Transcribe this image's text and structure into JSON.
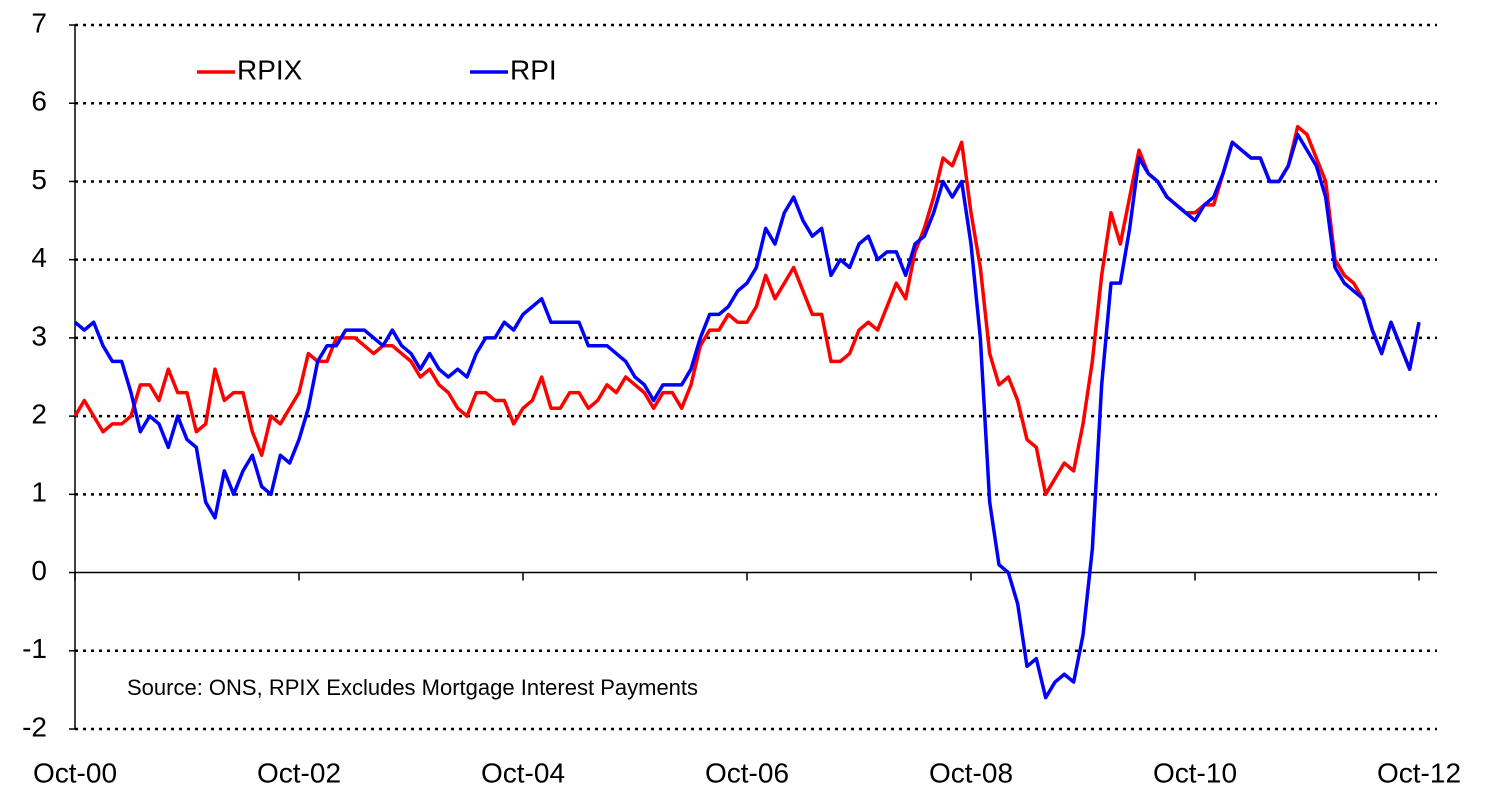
{
  "chart_data": {
    "type": "line",
    "annotation": "Source: ONS, RPIX Excludes Mortgage Interest Payments",
    "categories": [
      "Oct-00",
      null,
      null,
      null,
      null,
      null,
      null,
      null,
      null,
      null,
      null,
      null,
      null,
      null,
      null,
      null,
      null,
      null,
      null,
      null,
      null,
      null,
      null,
      null,
      "Oct-02",
      null,
      null,
      null,
      null,
      null,
      null,
      null,
      null,
      null,
      null,
      null,
      null,
      null,
      null,
      null,
      null,
      null,
      null,
      null,
      null,
      null,
      null,
      null,
      "Oct-04",
      null,
      null,
      null,
      null,
      null,
      null,
      null,
      null,
      null,
      null,
      null,
      null,
      null,
      null,
      null,
      null,
      null,
      null,
      null,
      null,
      null,
      null,
      null,
      "Oct-06",
      null,
      null,
      null,
      null,
      null,
      null,
      null,
      null,
      null,
      null,
      null,
      null,
      null,
      null,
      null,
      null,
      null,
      null,
      null,
      null,
      null,
      null,
      null,
      "Oct-08",
      null,
      null,
      null,
      null,
      null,
      null,
      null,
      null,
      null,
      null,
      null,
      null,
      null,
      null,
      null,
      null,
      null,
      null,
      null,
      null,
      null,
      null,
      null,
      "Oct-10",
      null,
      null,
      null,
      null,
      null,
      null,
      null,
      null,
      null,
      null,
      null,
      null,
      null,
      null,
      null,
      null,
      null,
      null,
      null,
      null,
      null,
      null,
      null,
      "Oct-12"
    ],
    "series": [
      {
        "name": "RPIX",
        "color": "#ff0000",
        "values": [
          2.0,
          2.2,
          2.0,
          1.8,
          1.9,
          1.9,
          2.0,
          2.4,
          2.4,
          2.2,
          2.6,
          2.3,
          2.3,
          1.8,
          1.9,
          2.6,
          2.2,
          2.3,
          2.3,
          1.8,
          1.5,
          2.0,
          1.9,
          2.1,
          2.3,
          2.8,
          2.7,
          2.7,
          3.0,
          3.0,
          3.0,
          2.9,
          2.8,
          2.9,
          2.9,
          2.8,
          2.7,
          2.5,
          2.6,
          2.4,
          2.3,
          2.1,
          2.0,
          2.3,
          2.3,
          2.2,
          2.2,
          1.9,
          2.1,
          2.2,
          2.5,
          2.1,
          2.1,
          2.3,
          2.3,
          2.1,
          2.2,
          2.4,
          2.3,
          2.5,
          2.4,
          2.3,
          2.1,
          2.3,
          2.3,
          2.1,
          2.4,
          2.9,
          3.1,
          3.1,
          3.3,
          3.2,
          3.2,
          3.4,
          3.8,
          3.5,
          3.7,
          3.9,
          3.6,
          3.3,
          3.3,
          2.7,
          2.7,
          2.8,
          3.1,
          3.2,
          3.1,
          3.4,
          3.7,
          3.5,
          4.1,
          4.4,
          4.8,
          5.3,
          5.2,
          5.5,
          4.6,
          3.9,
          2.8,
          2.4,
          2.5,
          2.2,
          1.7,
          1.6,
          1.0,
          1.2,
          1.4,
          1.3,
          1.9,
          2.7,
          3.8,
          4.6,
          4.2,
          4.8,
          5.4,
          5.1,
          5.0,
          4.8,
          4.7,
          4.6,
          4.6,
          4.7,
          4.7,
          5.1,
          5.5,
          5.4,
          5.3,
          5.3,
          5.0,
          5.0,
          5.2,
          5.7,
          5.6,
          5.3,
          5.0,
          4.0,
          3.8,
          3.7,
          3.5,
          3.1,
          2.8,
          3.2,
          2.9,
          2.6,
          3.2
        ]
      },
      {
        "name": "RPI",
        "color": "#0000ff",
        "values": [
          3.2,
          3.1,
          3.2,
          2.9,
          2.7,
          2.7,
          2.3,
          1.8,
          2.0,
          1.9,
          1.6,
          2.0,
          1.7,
          1.6,
          0.9,
          0.7,
          1.3,
          1.0,
          1.3,
          1.5,
          1.1,
          1.0,
          1.5,
          1.4,
          1.7,
          2.1,
          2.7,
          2.9,
          2.9,
          3.1,
          3.1,
          3.1,
          3.0,
          2.9,
          3.1,
          2.9,
          2.8,
          2.6,
          2.8,
          2.6,
          2.5,
          2.6,
          2.5,
          2.8,
          3.0,
          3.0,
          3.2,
          3.1,
          3.3,
          3.4,
          3.5,
          3.2,
          3.2,
          3.2,
          3.2,
          2.9,
          2.9,
          2.9,
          2.8,
          2.7,
          2.5,
          2.4,
          2.2,
          2.4,
          2.4,
          2.4,
          2.6,
          3.0,
          3.3,
          3.3,
          3.4,
          3.6,
          3.7,
          3.9,
          4.4,
          4.2,
          4.6,
          4.8,
          4.5,
          4.3,
          4.4,
          3.8,
          4.0,
          3.9,
          4.2,
          4.3,
          4.0,
          4.1,
          4.1,
          3.8,
          4.2,
          4.3,
          4.6,
          5.0,
          4.8,
          5.0,
          4.2,
          3.0,
          0.9,
          0.1,
          0.0,
          -0.4,
          -1.2,
          -1.1,
          -1.6,
          -1.4,
          -1.3,
          -1.4,
          -0.8,
          0.3,
          2.4,
          3.7,
          3.7,
          4.4,
          5.3,
          5.1,
          5.0,
          4.8,
          4.7,
          4.6,
          4.5,
          4.7,
          4.8,
          5.1,
          5.5,
          5.4,
          5.3,
          5.3,
          5.0,
          5.0,
          5.2,
          5.6,
          5.4,
          5.2,
          4.8,
          3.9,
          3.7,
          3.6,
          3.5,
          3.1,
          2.8,
          3.2,
          2.9,
          2.6,
          3.2
        ]
      }
    ],
    "ylim": [
      -2,
      7
    ],
    "yticks": [
      -2,
      -1,
      0,
      1,
      2,
      3,
      4,
      5,
      6,
      7
    ],
    "grid": true,
    "legend": "top-left"
  }
}
